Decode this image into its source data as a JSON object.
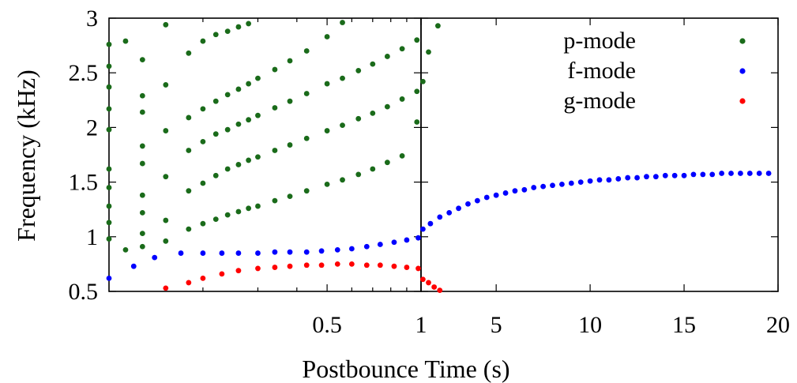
{
  "chart_data": {
    "type": "scatter",
    "ylabel": "Frequency (kHz)",
    "xlabel": "Postbounce Time (s)",
    "ylim": [
      0.5,
      3
    ],
    "yticks": [
      "0.5",
      "1",
      "1.5",
      "2",
      "2.5",
      "3"
    ],
    "panels": [
      {
        "name": "left",
        "xlim": [
          0.1,
          1
        ],
        "xscale": "log",
        "xticks": [
          {
            "value": 0.5,
            "label": "0.5"
          },
          {
            "value": 1,
            "label": "1"
          }
        ]
      },
      {
        "name": "right",
        "xlim": [
          1,
          20
        ],
        "xscale": "linear",
        "xticks": [
          {
            "value": 1,
            "label": "1"
          },
          {
            "value": 5,
            "label": "5"
          },
          {
            "value": 10,
            "label": "10"
          },
          {
            "value": 15,
            "label": "15"
          },
          {
            "value": 20,
            "label": "20"
          }
        ]
      }
    ],
    "legend": {
      "position": "top-right"
    },
    "series": [
      {
        "name": "p-mode",
        "color": "#1a6b1a",
        "points": [
          [
            0.1,
            0.98
          ],
          [
            0.1,
            1.13
          ],
          [
            0.1,
            1.28
          ],
          [
            0.1,
            1.45
          ],
          [
            0.1,
            1.62
          ],
          [
            0.1,
            1.98
          ],
          [
            0.1,
            2.17
          ],
          [
            0.1,
            2.37
          ],
          [
            0.1,
            2.56
          ],
          [
            0.1,
            2.76
          ],
          [
            0.113,
            0.88
          ],
          [
            0.113,
            2.79
          ],
          [
            0.128,
            0.91
          ],
          [
            0.128,
            1.03
          ],
          [
            0.128,
            1.22
          ],
          [
            0.128,
            1.38
          ],
          [
            0.128,
            1.67
          ],
          [
            0.128,
            1.83
          ],
          [
            0.128,
            2.14
          ],
          [
            0.128,
            2.29
          ],
          [
            0.128,
            2.62
          ],
          [
            0.152,
            0.96
          ],
          [
            0.152,
            1.15
          ],
          [
            0.152,
            1.55
          ],
          [
            0.152,
            1.97
          ],
          [
            0.152,
            2.39
          ],
          [
            0.152,
            2.94
          ],
          [
            0.18,
            1.07
          ],
          [
            0.18,
            1.42
          ],
          [
            0.18,
            1.79
          ],
          [
            0.18,
            2.09
          ],
          [
            0.18,
            2.68
          ],
          [
            0.2,
            1.12
          ],
          [
            0.2,
            1.49
          ],
          [
            0.2,
            1.87
          ],
          [
            0.2,
            2.17
          ],
          [
            0.2,
            2.79
          ],
          [
            0.22,
            1.16
          ],
          [
            0.22,
            1.56
          ],
          [
            0.22,
            1.94
          ],
          [
            0.22,
            2.24
          ],
          [
            0.22,
            2.85
          ],
          [
            0.24,
            1.2
          ],
          [
            0.24,
            1.62
          ],
          [
            0.24,
            1.98
          ],
          [
            0.24,
            2.3
          ],
          [
            0.24,
            2.88
          ],
          [
            0.26,
            1.23
          ],
          [
            0.26,
            1.66
          ],
          [
            0.26,
            2.03
          ],
          [
            0.26,
            2.35
          ],
          [
            0.26,
            2.92
          ],
          [
            0.28,
            1.26
          ],
          [
            0.28,
            1.7
          ],
          [
            0.28,
            2.07
          ],
          [
            0.28,
            2.4
          ],
          [
            0.28,
            2.95
          ],
          [
            0.3,
            1.28
          ],
          [
            0.3,
            1.73
          ],
          [
            0.3,
            2.11
          ],
          [
            0.3,
            2.45
          ],
          [
            0.34,
            1.33
          ],
          [
            0.34,
            1.79
          ],
          [
            0.34,
            2.18
          ],
          [
            0.34,
            2.53
          ],
          [
            0.38,
            1.37
          ],
          [
            0.38,
            1.84
          ],
          [
            0.38,
            2.24
          ],
          [
            0.38,
            2.61
          ],
          [
            0.43,
            1.42
          ],
          [
            0.43,
            1.9
          ],
          [
            0.43,
            2.31
          ],
          [
            0.43,
            2.7
          ],
          [
            0.5,
            1.48
          ],
          [
            0.5,
            1.97
          ],
          [
            0.5,
            2.4
          ],
          [
            0.5,
            2.83
          ],
          [
            0.56,
            1.52
          ],
          [
            0.56,
            2.02
          ],
          [
            0.56,
            2.45
          ],
          [
            0.56,
            2.96
          ],
          [
            0.63,
            1.57
          ],
          [
            0.63,
            2.08
          ],
          [
            0.63,
            2.52
          ],
          [
            0.7,
            1.62
          ],
          [
            0.7,
            2.13
          ],
          [
            0.7,
            2.58
          ],
          [
            0.78,
            1.68
          ],
          [
            0.78,
            2.19
          ],
          [
            0.78,
            2.65
          ],
          [
            0.87,
            1.74
          ],
          [
            0.87,
            2.26
          ],
          [
            0.87,
            2.72
          ],
          [
            0.97,
            2.05
          ],
          [
            0.97,
            2.33
          ],
          [
            0.97,
            2.8
          ],
          [
            1.1,
            2.42
          ],
          [
            1.4,
            2.69
          ],
          [
            1.9,
            2.93
          ]
        ]
      },
      {
        "name": "f-mode",
        "color": "#0000ff",
        "points": [
          [
            0.1,
            0.62
          ],
          [
            0.12,
            0.73
          ],
          [
            0.14,
            0.81
          ],
          [
            0.17,
            0.85
          ],
          [
            0.2,
            0.85
          ],
          [
            0.23,
            0.85
          ],
          [
            0.26,
            0.85
          ],
          [
            0.3,
            0.85
          ],
          [
            0.34,
            0.86
          ],
          [
            0.38,
            0.86
          ],
          [
            0.43,
            0.86
          ],
          [
            0.48,
            0.87
          ],
          [
            0.54,
            0.88
          ],
          [
            0.6,
            0.89
          ],
          [
            0.67,
            0.91
          ],
          [
            0.74,
            0.93
          ],
          [
            0.82,
            0.95
          ],
          [
            0.9,
            0.97
          ],
          [
            0.98,
            0.99
          ],
          [
            1.1,
            1.07
          ],
          [
            1.5,
            1.12
          ],
          [
            2,
            1.18
          ],
          [
            2.5,
            1.22
          ],
          [
            3,
            1.26
          ],
          [
            3.5,
            1.3
          ],
          [
            4,
            1.33
          ],
          [
            4.5,
            1.36
          ],
          [
            5,
            1.38
          ],
          [
            5.5,
            1.4
          ],
          [
            6,
            1.42
          ],
          [
            6.5,
            1.43
          ],
          [
            7,
            1.45
          ],
          [
            7.5,
            1.46
          ],
          [
            8,
            1.47
          ],
          [
            8.5,
            1.48
          ],
          [
            9,
            1.49
          ],
          [
            9.5,
            1.5
          ],
          [
            10,
            1.51
          ],
          [
            10.5,
            1.52
          ],
          [
            11,
            1.52
          ],
          [
            11.5,
            1.53
          ],
          [
            12,
            1.54
          ],
          [
            12.5,
            1.54
          ],
          [
            13,
            1.55
          ],
          [
            13.5,
            1.55
          ],
          [
            14,
            1.56
          ],
          [
            14.5,
            1.56
          ],
          [
            15,
            1.56
          ],
          [
            15.5,
            1.57
          ],
          [
            16,
            1.57
          ],
          [
            16.5,
            1.57
          ],
          [
            17,
            1.58
          ],
          [
            17.5,
            1.58
          ],
          [
            18,
            1.58
          ],
          [
            18.5,
            1.58
          ],
          [
            19,
            1.58
          ],
          [
            19.5,
            1.58
          ]
        ]
      },
      {
        "name": "g-mode",
        "color": "#ff0000",
        "points": [
          [
            0.152,
            0.53
          ],
          [
            0.18,
            0.58
          ],
          [
            0.2,
            0.62
          ],
          [
            0.23,
            0.66
          ],
          [
            0.26,
            0.69
          ],
          [
            0.3,
            0.71
          ],
          [
            0.34,
            0.72
          ],
          [
            0.38,
            0.73
          ],
          [
            0.43,
            0.74
          ],
          [
            0.48,
            0.74
          ],
          [
            0.54,
            0.75
          ],
          [
            0.6,
            0.75
          ],
          [
            0.67,
            0.74
          ],
          [
            0.74,
            0.74
          ],
          [
            0.82,
            0.73
          ],
          [
            0.9,
            0.72
          ],
          [
            0.98,
            0.71
          ],
          [
            1.1,
            0.61
          ],
          [
            1.4,
            0.58
          ],
          [
            1.7,
            0.54
          ],
          [
            2,
            0.51
          ]
        ]
      }
    ]
  }
}
